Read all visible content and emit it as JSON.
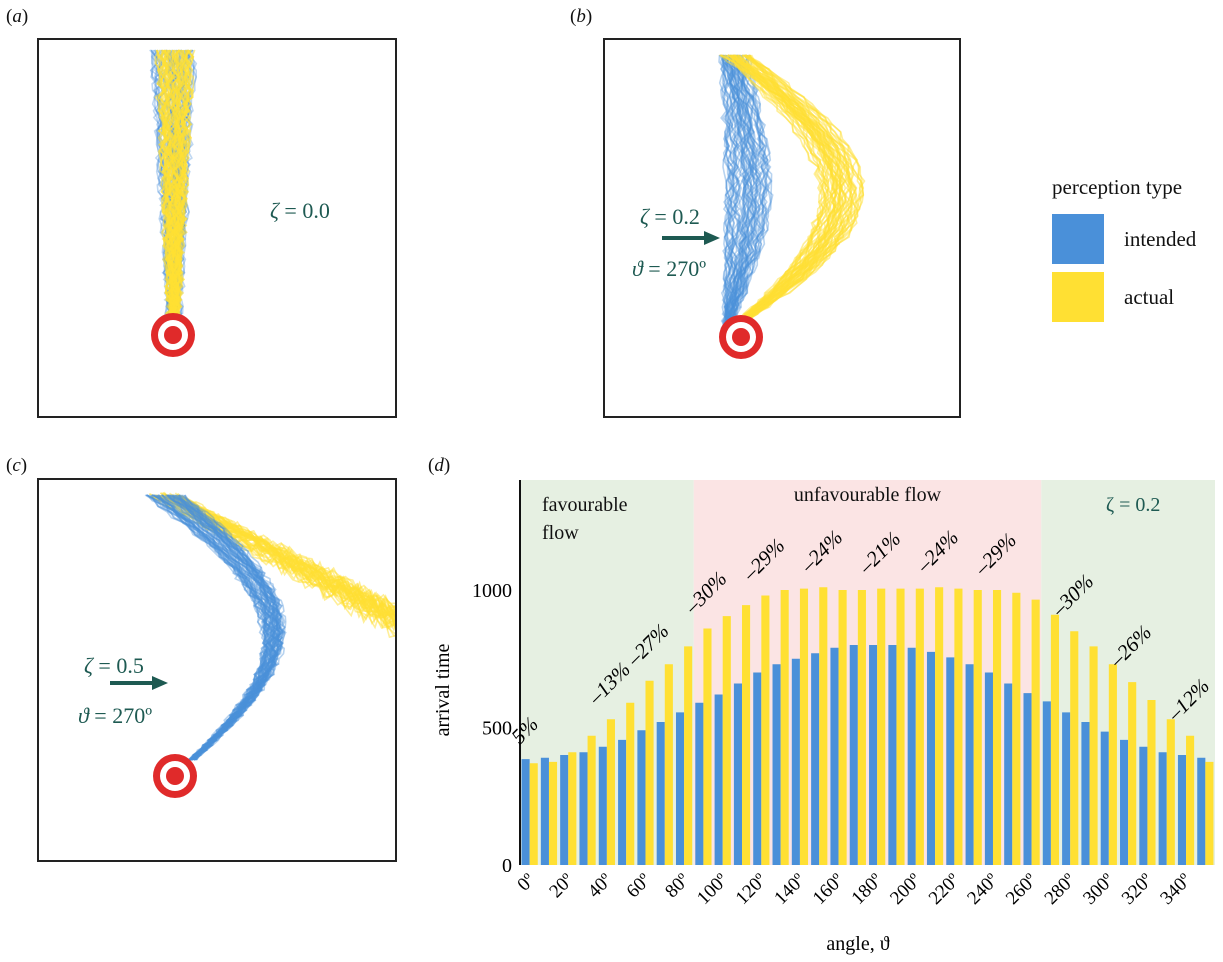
{
  "panels": {
    "a": {
      "letter": "a",
      "zeta_label": "ζ",
      "zeta_value": "= 0.0"
    },
    "b": {
      "letter": "b",
      "zeta_label": "ζ",
      "zeta_value": "= 0.2",
      "theta_label": "ϑ",
      "theta_value": "= 270º"
    },
    "c": {
      "letter": "c",
      "zeta_label": "ζ",
      "zeta_value": "= 0.5",
      "theta_label": "ϑ",
      "theta_value": "= 270º"
    },
    "d": {
      "letter": "d"
    }
  },
  "colors": {
    "intended": "#4a90d9",
    "actual": "#ffe033",
    "target_red": "#e02a2a",
    "annotation": "#1e5a52",
    "favourable_bg": "#e6f0e2",
    "unfavourable_bg": "#fbe4e4"
  },
  "legend": {
    "title": "perception type",
    "items": [
      {
        "label": "intended",
        "color": "#4a90d9"
      },
      {
        "label": "actual",
        "color": "#ffe033"
      }
    ]
  },
  "chart_data": {
    "type": "bar",
    "xlabel": "angle, ϑ",
    "ylabel": "arrival time",
    "ylim": [
      0,
      1400
    ],
    "yticks": [
      0,
      500,
      1000
    ],
    "xtick_labels": [
      "0º",
      "20º",
      "40º",
      "60º",
      "80º",
      "100º",
      "120º",
      "140º",
      "160º",
      "180º",
      "200º",
      "220º",
      "240º",
      "260º",
      "280º",
      "300º",
      "320º",
      "340º"
    ],
    "categories": [
      0,
      10,
      20,
      30,
      40,
      50,
      60,
      70,
      80,
      90,
      100,
      110,
      120,
      130,
      140,
      150,
      160,
      170,
      180,
      190,
      200,
      210,
      220,
      230,
      240,
      250,
      260,
      270,
      280,
      290,
      300,
      310,
      320,
      330,
      340,
      350
    ],
    "series": [
      {
        "name": "intended",
        "values": [
          385,
          390,
          400,
          410,
          430,
          455,
          490,
          520,
          555,
          590,
          620,
          660,
          700,
          730,
          750,
          770,
          790,
          800,
          800,
          800,
          790,
          775,
          755,
          730,
          700,
          660,
          625,
          595,
          555,
          520,
          485,
          455,
          430,
          410,
          400,
          390
        ]
      },
      {
        "name": "actual",
        "values": [
          370,
          375,
          410,
          470,
          530,
          590,
          670,
          730,
          795,
          860,
          905,
          945,
          980,
          1000,
          1005,
          1010,
          1000,
          1000,
          1005,
          1005,
          1005,
          1010,
          1005,
          1000,
          1000,
          990,
          965,
          910,
          850,
          795,
          730,
          665,
          600,
          530,
          470,
          375
        ]
      }
    ],
    "regions": [
      {
        "label_lines": [
          "favourable",
          "flow"
        ],
        "from": 0,
        "to": 90,
        "kind": "favourable"
      },
      {
        "label_lines": [
          "unfavourable flow"
        ],
        "from": 90,
        "to": 270,
        "kind": "unfavourable"
      },
      {
        "label_lines": [
          "ζ = 0.2"
        ],
        "from": 270,
        "to": 360,
        "kind": "favourable"
      }
    ],
    "annotations": [
      {
        "text": "5%",
        "angle": 0
      },
      {
        "text": "–13%",
        "angle": 40
      },
      {
        "text": "–27%",
        "angle": 60
      },
      {
        "text": "–30%",
        "angle": 90
      },
      {
        "text": "–29%",
        "angle": 120
      },
      {
        "text": "–24%",
        "angle": 150
      },
      {
        "text": "–21%",
        "angle": 180
      },
      {
        "text": "–24%",
        "angle": 210
      },
      {
        "text": "–29%",
        "angle": 240
      },
      {
        "text": "–30%",
        "angle": 280
      },
      {
        "text": "–26%",
        "angle": 310
      },
      {
        "text": "–12%",
        "angle": 340
      }
    ]
  }
}
